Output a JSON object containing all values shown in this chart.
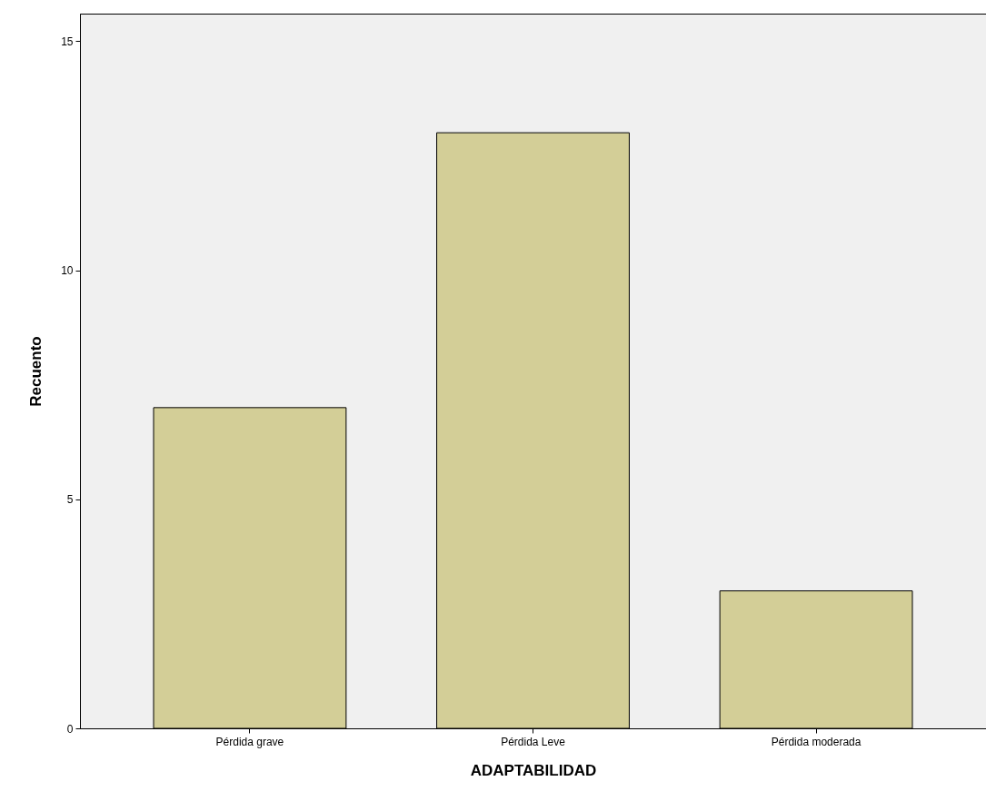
{
  "chart_data": {
    "type": "bar",
    "xlabel": "ADAPTABILIDAD",
    "ylabel": "Recuento",
    "categories": [
      "Pérdida grave",
      "Pérdida Leve",
      "Pérdida moderada"
    ],
    "values": [
      7,
      13,
      3
    ],
    "color": "#d3ce97",
    "ylim": [
      0,
      15.6
    ],
    "yticks": [
      0,
      5,
      10,
      15
    ],
    "grid": false
  }
}
